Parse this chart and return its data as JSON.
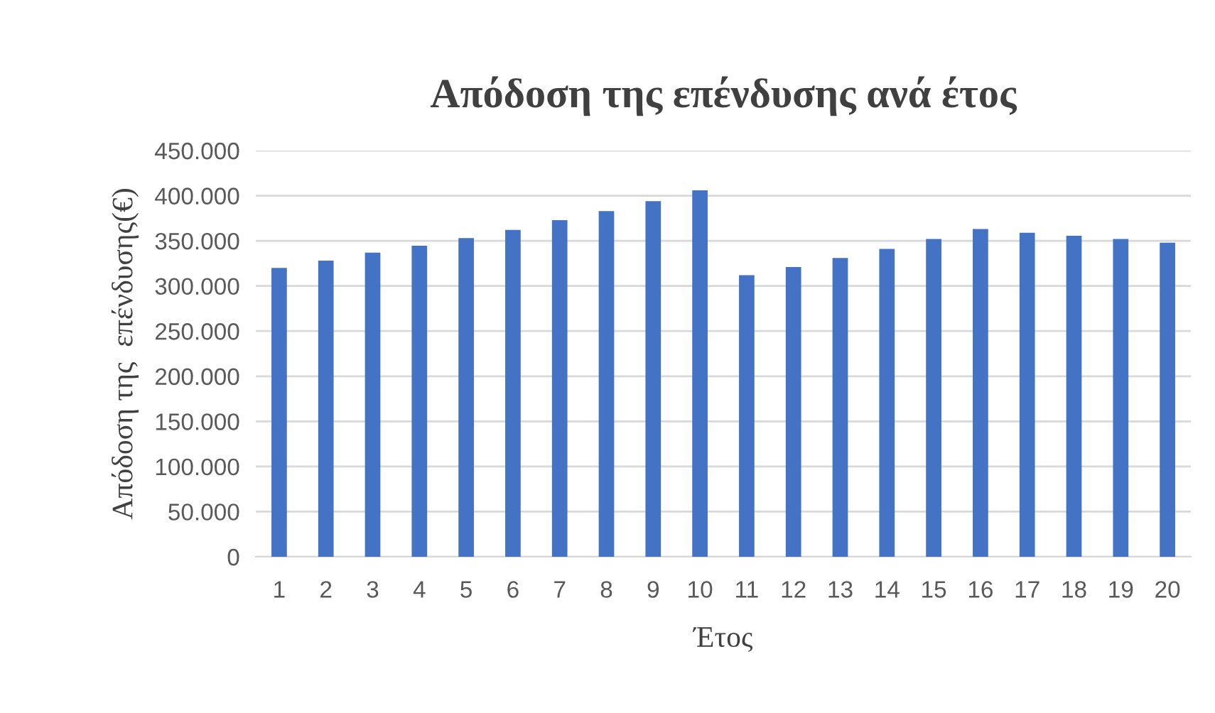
{
  "chart_data": {
    "type": "bar",
    "title": "Απόδοση της επένδυσης ανά έτος",
    "xlabel": "Έτος",
    "ylabel": "Απόδοση της  επένδυσης(€)",
    "categories": [
      "1",
      "2",
      "3",
      "4",
      "5",
      "6",
      "7",
      "8",
      "9",
      "10",
      "11",
      "12",
      "13",
      "14",
      "15",
      "16",
      "17",
      "18",
      "19",
      "20"
    ],
    "values": [
      320000,
      328000,
      337000,
      344500,
      353000,
      362000,
      373000,
      383000,
      394000,
      406000,
      312000,
      321000,
      331000,
      341000,
      352000,
      363000,
      359000,
      355500,
      352000,
      348000
    ],
    "color": "#4472c4",
    "ylim": [
      0,
      450000
    ],
    "yticks": [
      {
        "value": 0,
        "label": "0"
      },
      {
        "value": 50000,
        "label": "50.000"
      },
      {
        "value": 100000,
        "label": "100.000"
      },
      {
        "value": 150000,
        "label": "150.000"
      },
      {
        "value": 200000,
        "label": "200.000"
      },
      {
        "value": 250000,
        "label": "250.000"
      },
      {
        "value": 300000,
        "label": "300.000"
      },
      {
        "value": 350000,
        "label": "350.000"
      },
      {
        "value": 400000,
        "label": "400.000"
      },
      {
        "value": 450000,
        "label": "450.000"
      }
    ],
    "grid": "y"
  }
}
